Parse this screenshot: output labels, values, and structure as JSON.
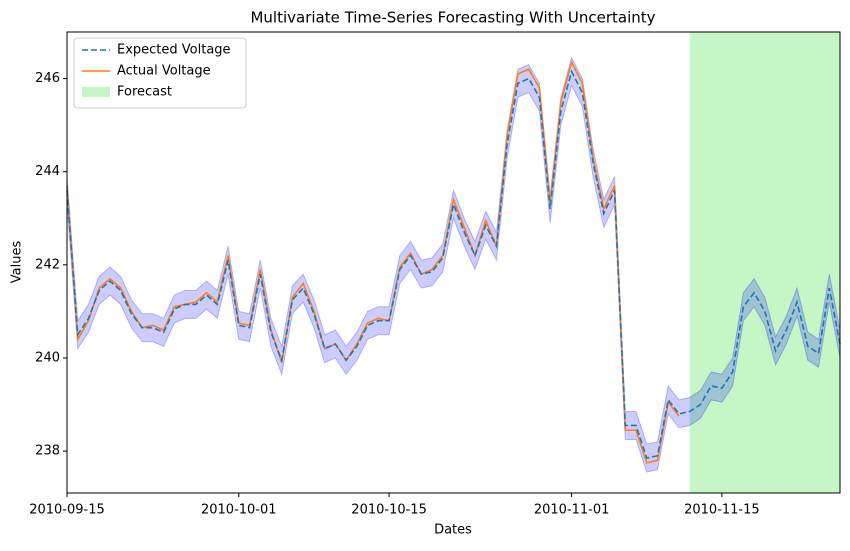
{
  "chart_data": {
    "type": "line",
    "title": "Multivariate Time-Series Forecasting With Uncertainty",
    "x_label": "Dates",
    "y_label": "Values",
    "x": [
      "2010-09-15",
      "2010-09-16",
      "2010-09-17",
      "2010-09-18",
      "2010-09-19",
      "2010-09-20",
      "2010-09-21",
      "2010-09-22",
      "2010-09-23",
      "2010-09-24",
      "2010-09-25",
      "2010-09-26",
      "2010-09-27",
      "2010-09-28",
      "2010-09-29",
      "2010-09-30",
      "2010-10-01",
      "2010-10-02",
      "2010-10-03",
      "2010-10-04",
      "2010-10-05",
      "2010-10-06",
      "2010-10-07",
      "2010-10-08",
      "2010-10-09",
      "2010-10-10",
      "2010-10-11",
      "2010-10-12",
      "2010-10-13",
      "2010-10-14",
      "2010-10-15",
      "2010-10-16",
      "2010-10-17",
      "2010-10-18",
      "2010-10-19",
      "2010-10-20",
      "2010-10-21",
      "2010-10-22",
      "2010-10-23",
      "2010-10-24",
      "2010-10-25",
      "2010-10-26",
      "2010-10-27",
      "2010-10-28",
      "2010-10-29",
      "2010-10-30",
      "2010-10-31",
      "2010-11-01",
      "2010-11-02",
      "2010-11-03",
      "2010-11-04",
      "2010-11-05",
      "2010-11-06",
      "2010-11-07",
      "2010-11-08",
      "2010-11-09",
      "2010-11-10",
      "2010-11-11",
      "2010-11-12",
      "2010-11-13",
      "2010-11-14",
      "2010-11-15",
      "2010-11-16",
      "2010-11-17",
      "2010-11-18",
      "2010-11-19",
      "2010-11-20",
      "2010-11-21",
      "2010-11-22",
      "2010-11-23",
      "2010-11-24",
      "2010-11-25",
      "2010-11-26"
    ],
    "series": [
      {
        "name": "Expected Voltage",
        "color": "#1f77b4",
        "dash": true,
        "values": [
          243.6,
          240.5,
          240.85,
          241.45,
          241.65,
          241.45,
          240.95,
          240.65,
          240.65,
          240.55,
          241.05,
          241.15,
          241.15,
          241.35,
          241.15,
          242.1,
          240.7,
          240.65,
          241.8,
          240.55,
          239.95,
          241.25,
          241.5,
          240.95,
          240.2,
          240.3,
          239.95,
          240.25,
          240.7,
          240.8,
          240.8,
          241.9,
          242.2,
          241.8,
          241.85,
          242.15,
          243.3,
          242.7,
          242.2,
          242.85,
          242.4,
          244.6,
          245.9,
          246.0,
          245.6,
          243.2,
          245.3,
          246.15,
          245.7,
          244.2,
          243.1,
          243.6,
          238.55,
          238.55,
          237.85,
          237.9,
          239.1,
          238.8,
          238.85,
          239.0,
          239.4,
          239.35,
          239.7,
          241.1,
          241.4,
          241.0,
          240.15,
          240.6,
          241.2,
          240.25,
          240.1,
          241.5,
          240.3
        ]
      },
      {
        "name": "Actual Voltage",
        "color": "#ff7f0e",
        "dash": false,
        "values": [
          243.7,
          240.4,
          240.8,
          241.5,
          241.7,
          241.5,
          241.0,
          240.65,
          240.7,
          240.6,
          241.1,
          241.15,
          241.2,
          241.4,
          241.2,
          242.2,
          240.75,
          240.7,
          241.9,
          240.6,
          239.9,
          241.3,
          241.6,
          241.0,
          240.2,
          240.3,
          239.95,
          240.3,
          240.75,
          240.85,
          240.8,
          241.95,
          242.25,
          241.8,
          241.9,
          242.2,
          243.4,
          242.8,
          242.2,
          242.95,
          242.4,
          244.8,
          246.1,
          246.2,
          245.8,
          243.3,
          245.5,
          246.35,
          245.9,
          244.3,
          243.2,
          243.7,
          238.45,
          238.45,
          237.75,
          237.8,
          239.05,
          238.75,
          null,
          null,
          null,
          null,
          null,
          null,
          null,
          null,
          null,
          null,
          null,
          null,
          null,
          null,
          null
        ]
      }
    ],
    "uncertainty": 0.3,
    "band_color": "#0000ff",
    "forecast": {
      "name": "Forecast",
      "color": "#c6f5c6",
      "span": [
        "2010-11-12",
        "2010-11-26"
      ]
    },
    "xlim": [
      "2010-09-15",
      "2010-11-26"
    ],
    "xticks": [
      "2010-09-15",
      "2010-10-01",
      "2010-10-15",
      "2010-11-01",
      "2010-11-15"
    ],
    "ylim": [
      237.1,
      247.0
    ],
    "yticks": [
      238,
      240,
      242,
      244,
      246
    ],
    "legend": "upper left"
  }
}
